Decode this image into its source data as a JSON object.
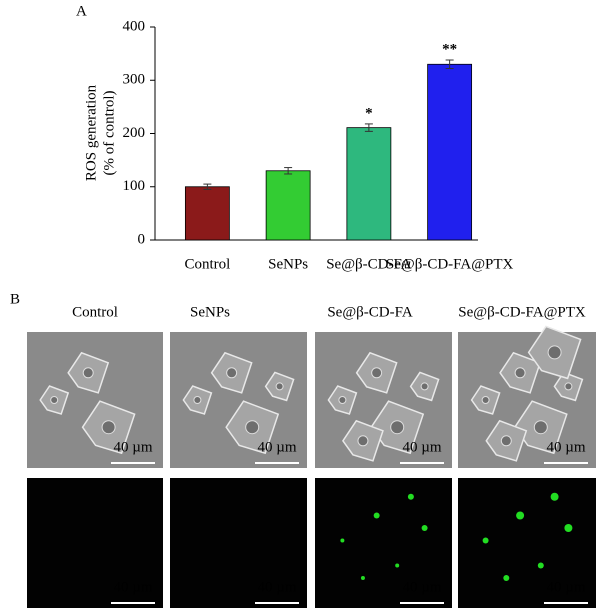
{
  "chart_data": {
    "type": "bar",
    "panel_label": "A",
    "ylabel": [
      "ROS generation",
      "(% of control)"
    ],
    "categories": [
      "Control",
      "SeNPs",
      "Se@β-CD-FA",
      "Se@β-CD-FA@PTX"
    ],
    "values": [
      100,
      130,
      211,
      330
    ],
    "errors": [
      5,
      6,
      7,
      8
    ],
    "colors": [
      "#8b1a1a",
      "#33cc33",
      "#2eb87e",
      "#2020ee"
    ],
    "significance": [
      null,
      null,
      "*",
      "**"
    ],
    "ylim": [
      0,
      400
    ],
    "yticks": [
      0,
      100,
      200,
      300,
      400
    ]
  },
  "panel_b": {
    "panel_label": "B",
    "columns": [
      "Control",
      "SeNPs",
      "Se@β-CD-FA",
      "Se@β-CD-FA@PTX"
    ],
    "scale_bar": "40 µm"
  }
}
